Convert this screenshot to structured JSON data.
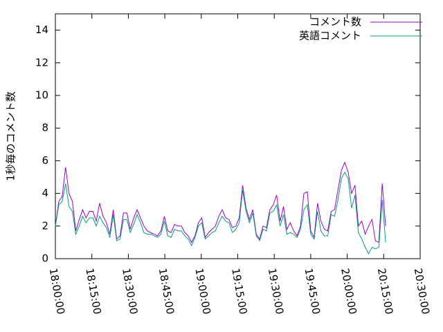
{
  "chart_data": {
    "type": "line",
    "ylabel": "1秒毎のコメント数",
    "x": [
      "18:00:00",
      "18:01:24",
      "18:02:48",
      "18:04:12",
      "18:05:36",
      "18:07:00",
      "18:08:24",
      "18:09:48",
      "18:11:12",
      "18:12:36",
      "18:14:00",
      "18:15:24",
      "18:16:48",
      "18:18:12",
      "18:19:36",
      "18:21:00",
      "18:22:24",
      "18:23:48",
      "18:25:12",
      "18:26:36",
      "18:28:00",
      "18:29:24",
      "18:30:48",
      "18:32:12",
      "18:33:36",
      "18:35:00",
      "18:36:24",
      "18:37:48",
      "18:39:12",
      "18:40:36",
      "18:42:00",
      "18:43:24",
      "18:44:48",
      "18:46:12",
      "18:47:36",
      "18:49:00",
      "18:50:24",
      "18:51:48",
      "18:53:12",
      "18:54:36",
      "18:56:00",
      "18:57:24",
      "18:58:48",
      "19:00:12",
      "19:01:36",
      "19:03:00",
      "19:04:24",
      "19:05:48",
      "19:07:12",
      "19:08:36",
      "19:10:00",
      "19:11:24",
      "19:12:48",
      "19:14:12",
      "19:15:36",
      "19:17:00",
      "19:18:24",
      "19:19:48",
      "19:21:12",
      "19:22:36",
      "19:24:00",
      "19:25:24",
      "19:26:48",
      "19:28:12",
      "19:29:36",
      "19:31:00",
      "19:32:24",
      "19:33:48",
      "19:35:12",
      "19:36:36",
      "19:38:00",
      "19:39:24",
      "19:40:48",
      "19:42:12",
      "19:43:36",
      "19:45:00",
      "19:46:24",
      "19:47:48",
      "19:49:12",
      "19:50:36",
      "19:52:00",
      "19:53:24",
      "19:54:48",
      "19:56:12",
      "19:57:36",
      "19:59:00",
      "20:00:24",
      "20:01:48",
      "20:03:12",
      "20:04:36",
      "20:06:00",
      "20:07:24",
      "20:08:48",
      "20:10:12",
      "20:11:36",
      "20:13:00",
      "20:14:24",
      "20:15:48"
    ],
    "series": [
      {
        "name": "コメント数",
        "color": "#9400d3",
        "values": [
          2.0,
          3.5,
          3.8,
          5.6,
          4.0,
          3.5,
          1.7,
          2.4,
          3.0,
          2.5,
          2.9,
          2.9,
          2.3,
          3.4,
          2.6,
          2.2,
          1.5,
          3.0,
          1.2,
          1.4,
          2.8,
          2.8,
          1.8,
          2.5,
          3.0,
          2.5,
          2.0,
          1.7,
          1.6,
          1.5,
          1.4,
          1.7,
          2.6,
          1.7,
          1.6,
          2.1,
          2.0,
          2.0,
          1.6,
          1.4,
          1.0,
          1.4,
          2.2,
          2.5,
          1.3,
          1.6,
          1.8,
          2.0,
          2.6,
          3.0,
          2.5,
          2.4,
          1.9,
          2.0,
          2.5,
          4.5,
          3.1,
          2.4,
          3.0,
          1.5,
          1.2,
          2.0,
          1.9,
          3.0,
          3.3,
          3.9,
          2.3,
          3.2,
          1.8,
          2.2,
          1.7,
          1.4,
          2.0,
          4.0,
          4.1,
          1.7,
          1.3,
          3.4,
          2.3,
          1.8,
          1.7,
          2.9,
          3.0,
          4.2,
          5.4,
          5.9,
          5.3,
          4.0,
          4.5,
          2.0,
          2.3,
          1.5,
          2.0,
          2.4,
          1.1,
          1.0,
          4.6,
          2.0
        ]
      },
      {
        "name": "英語コメント",
        "color": "#009e73",
        "values": [
          2.0,
          3.3,
          3.5,
          4.6,
          3.2,
          2.9,
          1.5,
          2.0,
          2.6,
          2.2,
          2.5,
          2.5,
          2.0,
          2.6,
          2.2,
          1.9,
          1.3,
          2.7,
          1.1,
          1.2,
          2.4,
          2.4,
          1.6,
          2.1,
          2.7,
          2.2,
          1.6,
          1.5,
          1.5,
          1.4,
          1.3,
          1.5,
          2.3,
          1.4,
          1.3,
          1.8,
          1.7,
          1.7,
          1.4,
          1.2,
          0.8,
          1.3,
          2.0,
          2.2,
          1.2,
          1.4,
          1.6,
          1.7,
          2.2,
          2.6,
          2.3,
          2.2,
          1.6,
          1.8,
          2.2,
          4.2,
          2.9,
          2.2,
          2.8,
          1.4,
          1.1,
          1.8,
          1.7,
          2.8,
          2.9,
          3.3,
          2.0,
          2.7,
          1.5,
          1.6,
          1.5,
          1.3,
          1.8,
          3.0,
          3.3,
          1.5,
          1.2,
          2.9,
          1.7,
          1.4,
          1.4,
          2.7,
          2.6,
          3.6,
          4.9,
          5.3,
          4.9,
          3.1,
          3.9,
          1.6,
          1.2,
          0.7,
          0.3,
          0.7,
          0.6,
          0.7,
          3.6,
          1.0
        ]
      }
    ],
    "xlim": [
      "18:00:00",
      "20:30:00"
    ],
    "xticks": [
      "18:00:00",
      "18:15:00",
      "18:30:00",
      "18:45:00",
      "19:00:00",
      "19:15:00",
      "19:30:00",
      "19:45:00",
      "20:00:00",
      "20:15:00",
      "20:30:00"
    ],
    "ylim": [
      0,
      15
    ],
    "yticks": [
      0,
      2,
      4,
      6,
      8,
      10,
      12,
      14
    ],
    "legend": "top-right"
  }
}
